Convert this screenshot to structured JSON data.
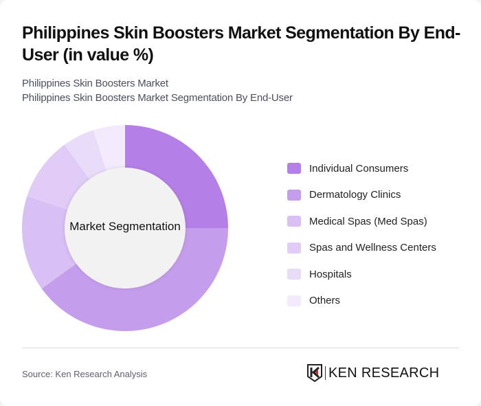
{
  "header": {
    "title": "Philippines Skin Boosters Market Segmentation By End-User (in value %)",
    "subtitle_1": "Philippines Skin Boosters Market",
    "subtitle_2": "Philippines Skin Boosters Market Segmentation By End-User"
  },
  "chart": {
    "center_label": "Market Segmentation"
  },
  "legend": [
    {
      "label": "Individual Consumers",
      "color": "#b57fe8"
    },
    {
      "label": "Dermatology Clinics",
      "color": "#c59ded"
    },
    {
      "label": "Medical Spas (Med Spas)",
      "color": "#d8bff4"
    },
    {
      "label": "Spas and Wellness Centers",
      "color": "#e0ccf6"
    },
    {
      "label": "Hospitals",
      "color": "#e9dcf9"
    },
    {
      "label": "Others",
      "color": "#f3ebfc"
    }
  ],
  "footer": {
    "source": "Source: Ken Research Analysis",
    "logo_text": "KEN RESEARCH"
  },
  "chart_data": {
    "type": "pie",
    "subtype": "donut",
    "title": "Philippines Skin Boosters Market Segmentation By End-User (in value %)",
    "center_label": "Market Segmentation",
    "categories": [
      "Individual Consumers",
      "Dermatology Clinics",
      "Medical Spas (Med Spas)",
      "Spas and Wellness Centers",
      "Hospitals",
      "Others"
    ],
    "values": [
      25,
      40,
      15,
      10,
      5,
      5
    ],
    "colors": [
      "#b57fe8",
      "#c59ded",
      "#d8bff4",
      "#e0ccf6",
      "#e9dcf9",
      "#f3ebfc"
    ],
    "unit": "%",
    "legend_position": "right"
  }
}
